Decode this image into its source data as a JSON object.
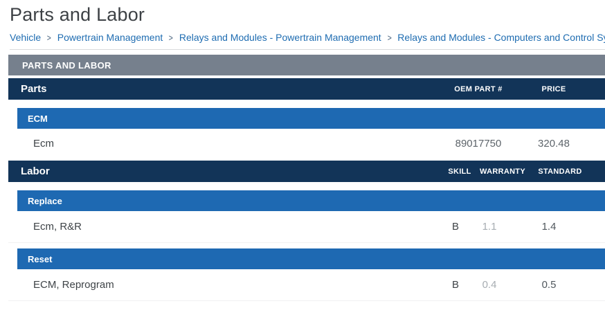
{
  "page": {
    "title": "Parts and Labor"
  },
  "breadcrumb": {
    "separator": ">",
    "items": [
      "Vehicle",
      "Powertrain Management",
      "Relays and Modules - Powertrain Management",
      "Relays and Modules - Computers and Control Syst"
    ]
  },
  "section_header": "PARTS AND LABOR",
  "parts": {
    "title": "Parts",
    "columns": [
      "OEM PART #",
      "PRICE"
    ],
    "groups": [
      {
        "name": "ECM",
        "rows": [
          {
            "label": "Ecm",
            "oem_part": "89017750",
            "price": "320.48"
          }
        ]
      }
    ]
  },
  "labor": {
    "title": "Labor",
    "columns": [
      "SKILL",
      "WARRANTY",
      "STANDARD"
    ],
    "groups": [
      {
        "name": "Replace",
        "rows": [
          {
            "label": "Ecm, R&R",
            "skill": "B",
            "warranty": "1.1",
            "standard": "1.4"
          }
        ]
      },
      {
        "name": "Reset",
        "rows": [
          {
            "label": "ECM, Reprogram",
            "skill": "B",
            "warranty": "0.4",
            "standard": "0.5"
          }
        ]
      }
    ]
  },
  "colors": {
    "navy_header": "#123458",
    "blue_group_header": "#1e69b2",
    "gray_section_bar": "#76808d",
    "link_blue": "#1e6cb1",
    "warranty_value_gray": "#a7adb2"
  }
}
